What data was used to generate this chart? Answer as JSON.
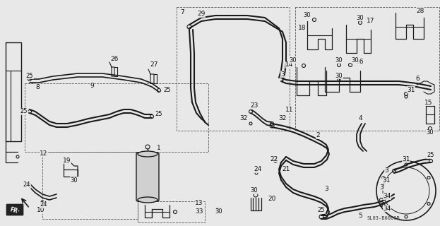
{
  "bg_color": "#e8e8e8",
  "line_color": "#1a1a1a",
  "text_color": "#111111",
  "diagram_code": "SL03-B6000B",
  "figsize": [
    6.23,
    3.2
  ],
  "dpi": 100
}
